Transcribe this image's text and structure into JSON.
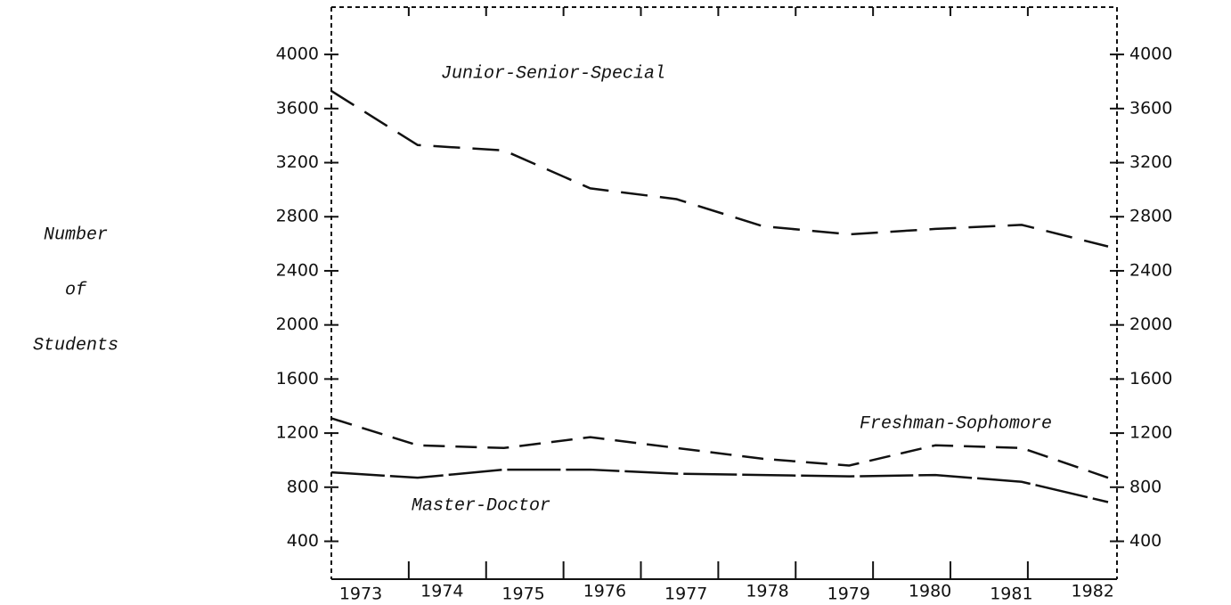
{
  "chart_data": {
    "type": "line",
    "y_label": [
      "Number",
      "of",
      "Students"
    ],
    "categories": [
      "1973",
      "1974",
      "1975",
      "1976",
      "1977",
      "1978",
      "1979",
      "1980",
      "1981",
      "1982"
    ],
    "series": [
      {
        "name": "Junior-Senior-Special",
        "color": "#111111",
        "values": [
          3730,
          3330,
          3290,
          3010,
          2930,
          2730,
          2670,
          2710,
          2740,
          2580
        ]
      },
      {
        "name": "Freshman-Sophomore",
        "color": "#111111",
        "values": [
          1310,
          1110,
          1090,
          1170,
          1090,
          1010,
          960,
          1110,
          1090,
          870
        ]
      },
      {
        "name": "Master-Doctor",
        "color": "#111111",
        "values": [
          910,
          870,
          930,
          930,
          900,
          890,
          880,
          890,
          840,
          690
        ]
      }
    ],
    "ylim": [
      120,
      4350
    ],
    "yticks": [
      400,
      800,
      1200,
      1600,
      2000,
      2400,
      2800,
      3200,
      3600,
      4000
    ]
  }
}
